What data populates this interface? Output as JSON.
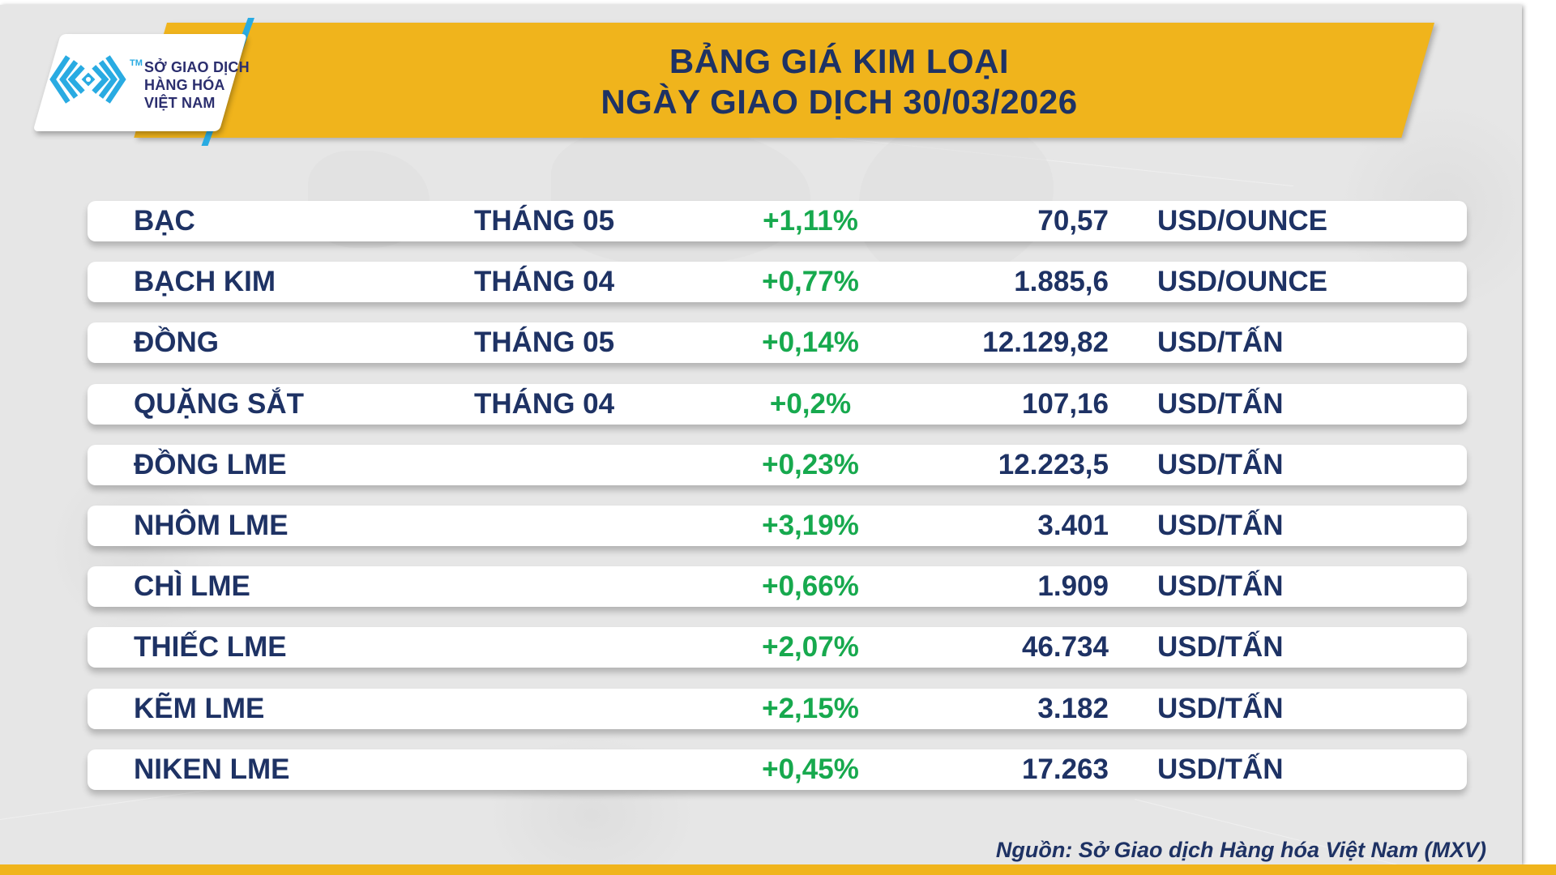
{
  "logo": {
    "org_lines": [
      "SỞ GIAO DỊCH",
      "HÀNG HÓA",
      "VIỆT NAM"
    ],
    "trademark": "TM"
  },
  "header": {
    "title_line1": "BẢNG GIÁ KIM LOẠI",
    "title_line2": "NGÀY GIAO DỊCH 30/03/2026"
  },
  "chart_data": {
    "type": "table",
    "title": "BẢNG GIÁ KIM LOẠI NGÀY GIAO DỊCH 30/03/2026",
    "columns": [
      "commodity",
      "contract_month",
      "change_percent",
      "price",
      "unit"
    ],
    "rows": [
      {
        "name": "BẠC",
        "month": "THÁNG 05",
        "change": "+1,11%",
        "price": "70,57",
        "unit": "USD/OUNCE"
      },
      {
        "name": "BẠCH KIM",
        "month": "THÁNG 04",
        "change": "+0,77%",
        "price": "1.885,6",
        "unit": "USD/OUNCE"
      },
      {
        "name": "ĐỒNG",
        "month": "THÁNG 05",
        "change": "+0,14%",
        "price": "12.129,82",
        "unit": "USD/TẤN"
      },
      {
        "name": "QUẶNG SẮT",
        "month": "THÁNG 04",
        "change": "+0,2%",
        "price": "107,16",
        "unit": "USD/TẤN"
      },
      {
        "name": "ĐỒNG LME",
        "month": "",
        "change": "+0,23%",
        "price": "12.223,5",
        "unit": "USD/TẤN"
      },
      {
        "name": "NHÔM LME",
        "month": "",
        "change": "+3,19%",
        "price": "3.401",
        "unit": "USD/TẤN"
      },
      {
        "name": "CHÌ LME",
        "month": "",
        "change": "+0,66%",
        "price": "1.909",
        "unit": "USD/TẤN"
      },
      {
        "name": "THIẾC LME",
        "month": "",
        "change": "+2,07%",
        "price": "46.734",
        "unit": "USD/TẤN"
      },
      {
        "name": "KẼM LME",
        "month": "",
        "change": "+2,15%",
        "price": "3.182",
        "unit": "USD/TẤN"
      },
      {
        "name": "NIKEN LME",
        "month": "",
        "change": "+0,45%",
        "price": "17.263",
        "unit": "USD/TẤN"
      }
    ]
  },
  "footer": {
    "source": "Nguồn: Sở Giao dịch Hàng hóa Việt Nam (MXV)"
  },
  "colors": {
    "navy": "#1e3264",
    "green": "#17a94e",
    "banner_yellow": "#f0b41c",
    "logo_cyan": "#29abe2",
    "background_gray": "#e6e6e6"
  }
}
